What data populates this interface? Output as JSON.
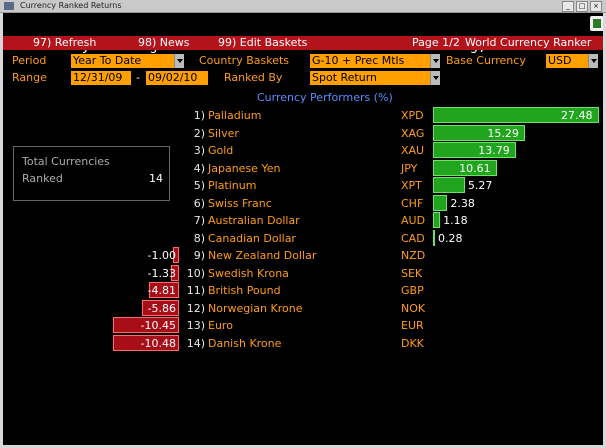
{
  "window": {
    "title": "Currency Ranked Returns"
  },
  "command_line": {
    "text": "Modify ranking criteria and hit <GO> for new ranking, <PAGE> for tabular data"
  },
  "menu": {
    "refresh": "97) Refresh",
    "news": "98) News",
    "edit_baskets": "99) Edit Baskets",
    "page": "Page 1/2",
    "app_title": "World Currency Ranker"
  },
  "controls": {
    "period_label": "Period",
    "period_value": "Year To Date",
    "country_baskets_label": "Country Baskets",
    "country_baskets_value": "G-10 + Prec Mtls",
    "base_currency_label": "Base Currency",
    "base_currency_value": "USD",
    "range_label": "Range",
    "range_start": "12/31/09",
    "range_sep": "-",
    "range_end": "09/02/10",
    "ranked_by_label": "Ranked By",
    "ranked_by_value": "Spot Return"
  },
  "performers_header": "Currency Performers (%)",
  "summary": {
    "label_line1": "Total Currencies",
    "label_line2": "Ranked",
    "count": "14"
  },
  "colors": {
    "positive": "#22a51e",
    "negative": "#a80e18",
    "label": "#ff9c1a",
    "highlight": "#ffa000"
  },
  "rows": [
    {
      "rank": "1)",
      "name": "Palladium",
      "code": "XPD",
      "value": "27.48",
      "v": 27.48
    },
    {
      "rank": "2)",
      "name": "Silver",
      "code": "XAG",
      "value": "15.29",
      "v": 15.29
    },
    {
      "rank": "3)",
      "name": "Gold",
      "code": "XAU",
      "value": "13.79",
      "v": 13.79
    },
    {
      "rank": "4)",
      "name": "Japanese Yen",
      "code": "JPY",
      "value": "10.61",
      "v": 10.61
    },
    {
      "rank": "5)",
      "name": "Platinum",
      "code": "XPT",
      "value": "5.27",
      "v": 5.27
    },
    {
      "rank": "6)",
      "name": "Swiss Franc",
      "code": "CHF",
      "value": "2.38",
      "v": 2.38
    },
    {
      "rank": "7)",
      "name": "Australian Dollar",
      "code": "AUD",
      "value": "1.18",
      "v": 1.18
    },
    {
      "rank": "8)",
      "name": "Canadian Dollar",
      "code": "CAD",
      "value": "0.28",
      "v": 0.28
    },
    {
      "rank": "9)",
      "name": "New Zealand Dollar",
      "code": "NZD",
      "value": "-1.00",
      "v": -1.0
    },
    {
      "rank": "10)",
      "name": "Swedish Krona",
      "code": "SEK",
      "value": "-1.33",
      "v": -1.33
    },
    {
      "rank": "11)",
      "name": "British Pound",
      "code": "GBP",
      "value": "-4.81",
      "v": -4.81
    },
    {
      "rank": "12)",
      "name": "Norwegian Krone",
      "code": "NOK",
      "value": "-5.86",
      "v": -5.86
    },
    {
      "rank": "13)",
      "name": "Euro",
      "code": "EUR",
      "value": "-10.45",
      "v": -10.45
    },
    {
      "rank": "14)",
      "name": "Danish Krone",
      "code": "DKK",
      "value": "-10.48",
      "v": -10.48
    }
  ]
}
